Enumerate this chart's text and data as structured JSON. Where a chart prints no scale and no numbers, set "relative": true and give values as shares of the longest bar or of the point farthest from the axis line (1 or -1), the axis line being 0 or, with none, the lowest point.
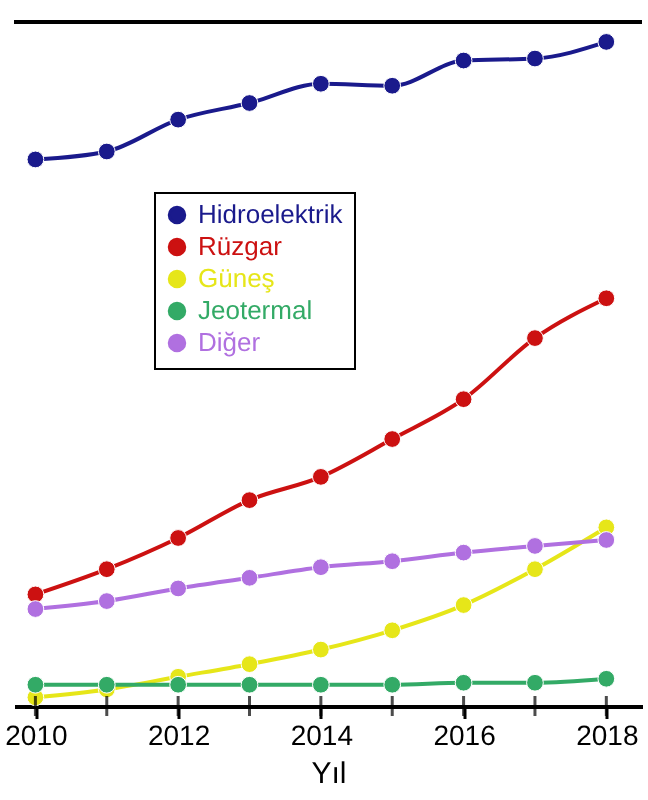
{
  "chart_data": {
    "type": "line",
    "xlabel": "Yıl",
    "relative": true,
    "x": [
      2010,
      2011,
      2012,
      2013,
      2014,
      2015,
      2016,
      2017,
      2018
    ],
    "xlim": [
      2009.7,
      2018.5
    ],
    "xticks": [
      2010,
      {
        "value": 2011,
        "label": null
      },
      2012,
      {
        "value": 2013,
        "label": null
      },
      2014,
      {
        "value": 2015,
        "label": null
      },
      2016,
      {
        "value": 2017,
        "label": null
      },
      2018
    ],
    "tick_labels": "x",
    "legend": "top left",
    "marker": "circle",
    "line_style": "solid",
    "grid": false,
    "series": [
      {
        "name": "Hidroelektrik",
        "color": "#1a1a8c",
        "values": [
          0.823,
          0.835,
          0.883,
          0.908,
          0.937,
          0.934,
          0.972,
          0.975,
          1
        ]
      },
      {
        "name": "Rüzgar",
        "color": "#cc1111",
        "values": [
          0.168,
          0.206,
          0.253,
          0.31,
          0.345,
          0.402,
          0.462,
          0.554,
          0.614
        ]
      },
      {
        "name": "Güneş",
        "color": "#e6e619",
        "values": [
          0.013,
          0.025,
          0.044,
          0.063,
          0.085,
          0.114,
          0.152,
          0.206,
          0.269
        ]
      },
      {
        "name": "Jeotermal",
        "color": "#33aa66",
        "values": [
          0.032,
          0.032,
          0.032,
          0.032,
          0.032,
          0.032,
          0.035,
          0.035,
          0.041
        ]
      },
      {
        "name": "Diğer",
        "color": "#b070e0",
        "values": [
          0.146,
          0.158,
          0.177,
          0.193,
          0.209,
          0.218,
          0.231,
          0.241,
          0.25
        ]
      }
    ]
  }
}
